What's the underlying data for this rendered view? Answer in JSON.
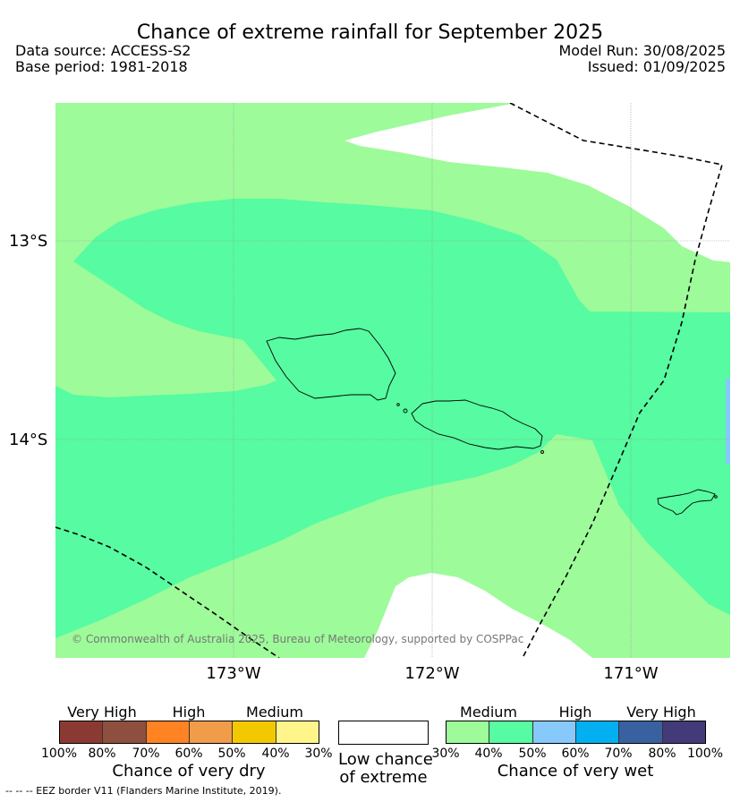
{
  "header": {
    "title": "Chance of extreme rainfall for September 2025",
    "data_source": "Data source: ACCESS-S2",
    "base_period": "Base period: 1981-2018",
    "model_run": "Model Run: 30/08/2025",
    "issued": "Issued: 01/09/2025"
  },
  "map": {
    "latitude_labels": [
      "13°S",
      "14°S"
    ],
    "longitude_labels": [
      "173°W",
      "172°W",
      "171°W"
    ],
    "copyright": "© Commonwealth of Australia 2025, Bureau of Meteorology, supported by COSPPac",
    "zone_colors": {
      "medium_wet": "#9dfb9a",
      "medium_wet_40": "#57fba1",
      "high_wet": "#86c9fa",
      "none": "#ffffff"
    }
  },
  "legend": {
    "dry": {
      "categories": [
        "Very High",
        "High",
        "Medium"
      ],
      "ticks": [
        "100%",
        "80%",
        "70%",
        "60%",
        "50%",
        "40%",
        "30%"
      ],
      "title": "Chance of very dry",
      "colors": [
        "#8b3a33",
        "#8e4f3e",
        "#ff8223",
        "#f09c48",
        "#f2c901",
        "#fff58b"
      ]
    },
    "low": {
      "label_line1": "Low chance",
      "label_line2": "of extreme"
    },
    "wet": {
      "categories": [
        "Medium",
        "High",
        "Very High"
      ],
      "ticks": [
        "30%",
        "40%",
        "50%",
        "60%",
        "70%",
        "80%",
        "100%"
      ],
      "title": "Chance of very wet",
      "colors": [
        "#9dfb9a",
        "#57fba1",
        "#86c9fa",
        "#02b0f1",
        "#3a619f",
        "#433a79"
      ]
    }
  },
  "footnote": "-- -- -- EEZ border V11 (Flanders Marine Institute, 2019)."
}
